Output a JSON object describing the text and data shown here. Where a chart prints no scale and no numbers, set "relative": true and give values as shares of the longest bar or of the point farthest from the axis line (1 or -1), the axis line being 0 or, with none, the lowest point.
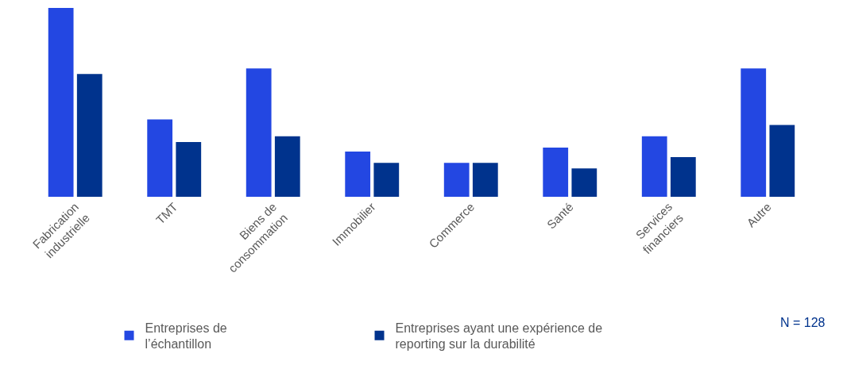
{
  "chart_data": {
    "type": "bar",
    "relative": true,
    "categories": [
      "Fabrication\nindustrielle",
      "TMT",
      "Biens de\nconsommation",
      "Immobilier",
      "Commerce",
      "Santé",
      "Services\nfinanciers",
      "Autre"
    ],
    "series": [
      {
        "name": "Entreprises de\nl’échantillon",
        "color": "#2347e2",
        "values": [
          1,
          0.41,
          0.68,
          0.24,
          0.18,
          0.26,
          0.32,
          0.68
        ]
      },
      {
        "name": "Entreprises ayant une expérience de\nreporting sur la durabilité",
        "color": "#00338d",
        "values": [
          0.65,
          0.29,
          0.32,
          0.18,
          0.18,
          0.15,
          0.21,
          0.38
        ]
      }
    ],
    "legend": "bottom",
    "annotations": [
      "N = 128"
    ]
  }
}
